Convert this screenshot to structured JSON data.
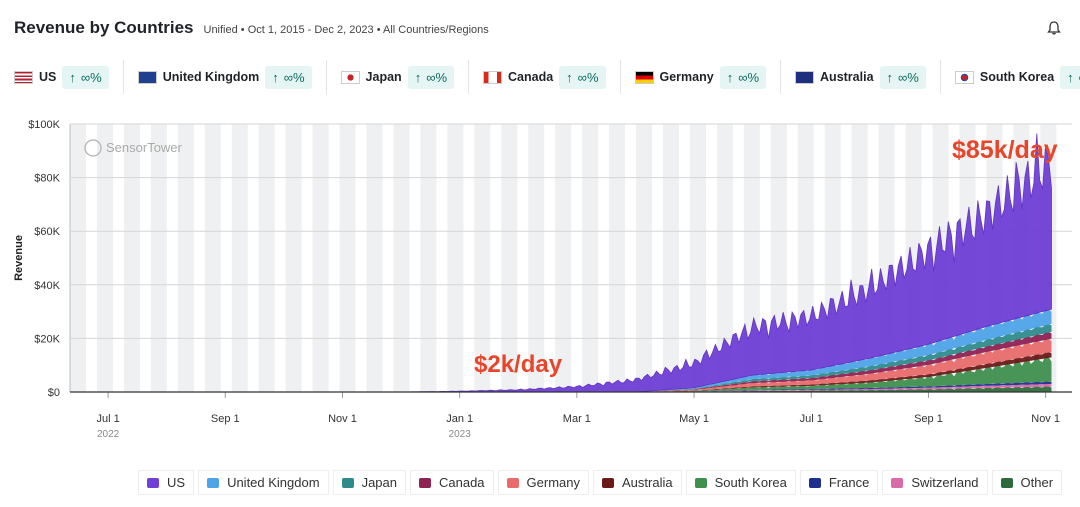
{
  "header": {
    "title": "Revenue by Countries",
    "subtitle": "Unified • Oct 1, 2015 - Dec 2, 2023 • All Countries/Regions"
  },
  "countries": [
    {
      "name": "US",
      "delta": "∞%",
      "flag": "us"
    },
    {
      "name": "United Kingdom",
      "delta": "∞%",
      "flag": "uk"
    },
    {
      "name": "Japan",
      "delta": "∞%",
      "flag": "jp"
    },
    {
      "name": "Canada",
      "delta": "∞%",
      "flag": "ca"
    },
    {
      "name": "Germany",
      "delta": "∞%",
      "flag": "de"
    },
    {
      "name": "Australia",
      "delta": "∞%",
      "flag": "au"
    },
    {
      "name": "South Korea",
      "delta": "∞%",
      "flag": "kr"
    }
  ],
  "watermark": "SensorTower",
  "chart_data": {
    "type": "area",
    "ylabel": "Revenue",
    "ylim": [
      0,
      100000
    ],
    "yticks": [
      "$0",
      "$20K",
      "$40K",
      "$60K",
      "$80K",
      "$100K"
    ],
    "xticks": [
      {
        "label": "Jul 1",
        "sub": "2022"
      },
      {
        "label": "Sep 1",
        "sub": ""
      },
      {
        "label": "Nov 1",
        "sub": ""
      },
      {
        "label": "Jan 1",
        "sub": "2023"
      },
      {
        "label": "Mar 1",
        "sub": ""
      },
      {
        "label": "May 1",
        "sub": ""
      },
      {
        "label": "Jul 1",
        "sub": ""
      },
      {
        "label": "Sep 1",
        "sub": ""
      },
      {
        "label": "Nov 1",
        "sub": ""
      }
    ],
    "x_months": [
      0,
      1,
      2,
      3,
      4,
      5,
      6,
      7,
      8,
      9,
      10,
      11,
      12,
      13,
      14,
      15,
      16.1
    ],
    "series": [
      {
        "name": "US",
        "color": "#6f3fd6",
        "values": [
          0,
          0,
          0,
          0,
          0,
          0,
          300,
          800,
          2000,
          4500,
          9000,
          18000,
          20000,
          26000,
          35000,
          42000,
          55000
        ]
      },
      {
        "name": "United Kingdom",
        "color": "#4da3e8",
        "values": [
          0,
          0,
          0,
          0,
          0,
          0,
          0,
          0,
          0,
          0,
          400,
          1500,
          2000,
          3000,
          4000,
          5000,
          5500
        ]
      },
      {
        "name": "Japan",
        "color": "#2f8b8b",
        "values": [
          0,
          0,
          0,
          0,
          0,
          0,
          0,
          0,
          0,
          0,
          200,
          800,
          1000,
          1500,
          2000,
          2500,
          3000
        ]
      },
      {
        "name": "Canada",
        "color": "#8e2254",
        "values": [
          0,
          0,
          0,
          0,
          0,
          0,
          0,
          0,
          0,
          0,
          200,
          700,
          900,
          1300,
          1700,
          2000,
          2500
        ]
      },
      {
        "name": "Germany",
        "color": "#e86b6b",
        "values": [
          0,
          0,
          0,
          0,
          0,
          0,
          0,
          0,
          0,
          0,
          300,
          1200,
          1500,
          2500,
          3500,
          4500,
          5000
        ]
      },
      {
        "name": "Australia",
        "color": "#6b1a1a",
        "values": [
          0,
          0,
          0,
          0,
          0,
          0,
          0,
          0,
          0,
          0,
          100,
          400,
          500,
          800,
          1000,
          1500,
          2000
        ]
      },
      {
        "name": "South Korea",
        "color": "#3f8f4f",
        "values": [
          0,
          0,
          0,
          0,
          0,
          0,
          0,
          0,
          0,
          0,
          200,
          900,
          1200,
          2000,
          3500,
          6000,
          9000
        ]
      },
      {
        "name": "France",
        "color": "#1f2f8f",
        "values": [
          0,
          0,
          0,
          0,
          0,
          0,
          0,
          0,
          0,
          0,
          50,
          200,
          300,
          400,
          500,
          700,
          900
        ]
      },
      {
        "name": "Switzerland",
        "color": "#d96aa8",
        "values": [
          0,
          0,
          0,
          0,
          0,
          0,
          0,
          0,
          0,
          0,
          50,
          200,
          300,
          400,
          600,
          800,
          1000
        ]
      },
      {
        "name": "Other",
        "color": "#2e6b3c",
        "values": [
          0,
          0,
          0,
          0,
          0,
          0,
          0,
          0,
          0,
          0,
          100,
          400,
          500,
          700,
          1000,
          1500,
          2000
        ]
      }
    ],
    "annotations": [
      {
        "text": "$2k/day",
        "color": "#e8462a"
      },
      {
        "text": "$85k/day",
        "color": "#e8462a"
      }
    ]
  }
}
